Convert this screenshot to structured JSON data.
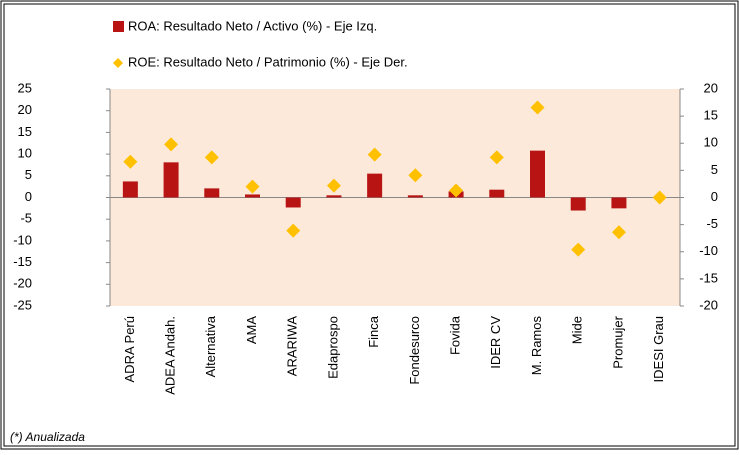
{
  "chart_data": {
    "type": "bar_scatter",
    "categories": [
      "ADRA Perú",
      "ADEA Andah.",
      "Alternativa",
      "AMA",
      "ARARIWA",
      "Edaprospo",
      "Finca",
      "Fondesurco",
      "Fovida",
      "IDER CV",
      "M. Ramos",
      "Mide",
      "Promujer",
      "IDESI Grau"
    ],
    "series": [
      {
        "name": "ROA: Resultado Neto / Activo (%) - Eje Izq.",
        "color": "#b81414",
        "values": [
          3.7,
          8.1,
          2.1,
          0.7,
          -2.3,
          0.5,
          5.5,
          0.5,
          1.4,
          1.8,
          10.8,
          -3.0,
          -2.5,
          0
        ]
      },
      {
        "name": "ROE: Resultado Neto / Patrimonio (%) - Eje Der.",
        "color": "#ffc000",
        "axis": "y2",
        "values": [
          6.6,
          9.8,
          7.4,
          2.0,
          -6.1,
          2.2,
          7.9,
          4.1,
          1.3,
          7.4,
          16.6,
          -9.6,
          -6.4,
          0
        ]
      }
    ],
    "ylim": [
      -25,
      25
    ],
    "yticks": [
      -25,
      -20,
      -15,
      -10,
      -5,
      0,
      5,
      10,
      15,
      20,
      25
    ],
    "y2lim": [
      -20,
      20
    ],
    "y2ticks": [
      -20,
      -15,
      -10,
      -5,
      0,
      5,
      10,
      15,
      20
    ],
    "note": "(*) Anualizada"
  }
}
